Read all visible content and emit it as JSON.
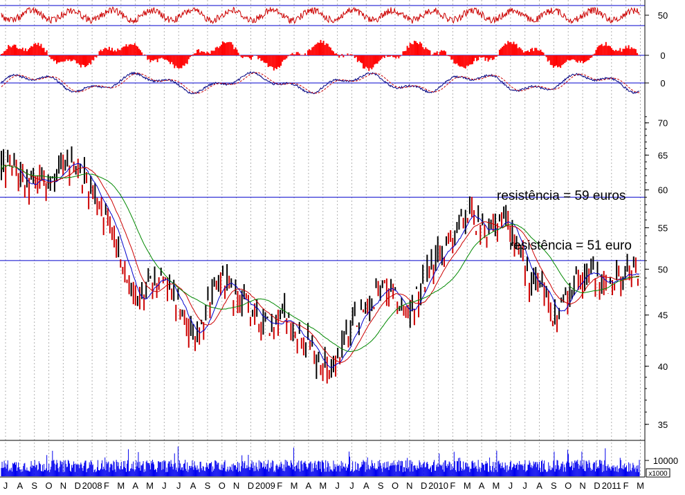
{
  "chart_data": {
    "type": "line",
    "description_series": "daily price bars (log scale) with moving averages, three oscillators above and volume below",
    "price": {
      "ylim": [
        34,
        72
      ],
      "scale": "log",
      "y_ticks": [
        35,
        40,
        45,
        50,
        55,
        60,
        65,
        70
      ],
      "annotations": [
        {
          "text": "resistência = 59 euros",
          "level": 59
        },
        {
          "text": "resistência = 51 euro",
          "level": 51
        }
      ],
      "months": [
        "J",
        "A",
        "S",
        "O",
        "N",
        "D",
        "2008",
        "F",
        "M",
        "A",
        "M",
        "J",
        "J",
        "A",
        "S",
        "O",
        "N",
        "D",
        "2009",
        "F",
        "M",
        "A",
        "M",
        "J",
        "J",
        "A",
        "S",
        "O",
        "N",
        "D",
        "2010",
        "F",
        "M",
        "A",
        "M",
        "J",
        "J",
        "A",
        "S",
        "O",
        "N",
        "D",
        "2011",
        "F",
        "M"
      ],
      "close_path": [
        [
          0,
          63
        ],
        [
          1,
          63
        ],
        [
          2,
          60
        ],
        [
          3,
          62
        ],
        [
          4,
          61
        ],
        [
          5,
          63
        ],
        [
          6,
          64
        ],
        [
          7,
          61
        ],
        [
          8,
          58
        ],
        [
          9,
          55
        ],
        [
          10,
          50
        ],
        [
          11,
          46
        ],
        [
          12,
          48
        ],
        [
          13,
          49
        ],
        [
          14,
          47
        ],
        [
          15,
          44
        ],
        [
          16,
          43
        ],
        [
          17,
          46
        ],
        [
          18,
          49
        ],
        [
          19,
          47
        ],
        [
          20,
          46
        ],
        [
          21,
          45
        ],
        [
          22,
          44
        ],
        [
          23,
          45
        ],
        [
          24,
          43
        ],
        [
          25,
          42
        ],
        [
          26,
          40
        ],
        [
          27,
          40
        ],
        [
          28,
          42
        ],
        [
          29,
          45
        ],
        [
          30,
          46
        ],
        [
          31,
          48
        ],
        [
          32,
          47
        ],
        [
          33,
          45
        ],
        [
          34,
          47
        ],
        [
          35,
          50
        ],
        [
          36,
          52
        ],
        [
          37,
          54
        ],
        [
          38,
          57
        ],
        [
          39,
          55
        ],
        [
          40,
          54
        ],
        [
          41,
          57
        ],
        [
          42,
          53
        ],
        [
          43,
          49
        ],
        [
          44,
          48
        ],
        [
          45,
          45
        ],
        [
          46,
          47
        ],
        [
          47,
          49
        ],
        [
          48,
          50
        ],
        [
          49,
          48
        ],
        [
          50,
          49
        ],
        [
          51,
          50
        ],
        [
          52,
          49
        ]
      ],
      "ma_short_color": "#0000cc",
      "ma_mid_color": "#cc0000",
      "ma_long_color": "#008800",
      "bar_color": "#000000",
      "bar_down_color": "#cc0000"
    },
    "oscillator_1": {
      "tick": "50",
      "color": "#cc0000"
    },
    "oscillator_2": {
      "tick": "0",
      "color": "#ff0000"
    },
    "oscillator_3": {
      "tick": "0",
      "colors": [
        "#000080",
        "#cc0000"
      ]
    },
    "volume": {
      "tick": "10000",
      "unit": "x1000",
      "color": "#0000ee"
    }
  }
}
